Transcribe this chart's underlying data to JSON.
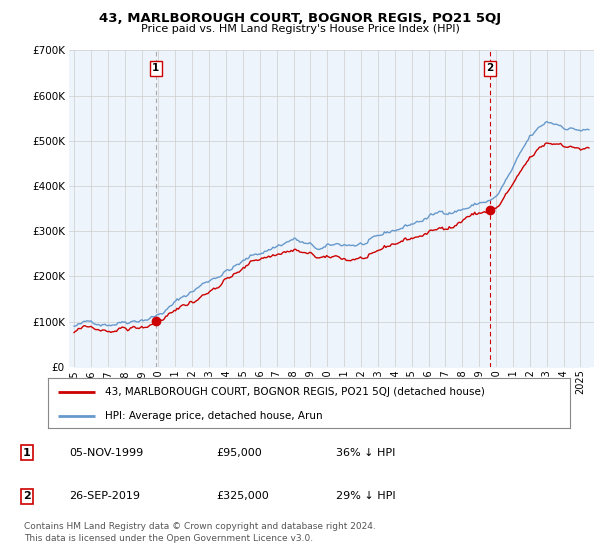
{
  "title": "43, MARLBOROUGH COURT, BOGNOR REGIS, PO21 5QJ",
  "subtitle": "Price paid vs. HM Land Registry's House Price Index (HPI)",
  "ylim": [
    0,
    700000
  ],
  "yticks": [
    0,
    100000,
    200000,
    300000,
    400000,
    500000,
    600000,
    700000
  ],
  "hpi_color": "#6699cc",
  "hpi_fill_color": "#ddeeff",
  "price_color": "#cc0000",
  "vline1_color": "#aaaaaa",
  "vline2_color": "#cc0000",
  "purchase1_date": 2000.0,
  "purchase1_price": 95000,
  "purchase1_label": "1",
  "purchase2_date": 2020.0,
  "purchase2_price": 325000,
  "purchase2_label": "2",
  "legend_line1": "43, MARLBOROUGH COURT, BOGNOR REGIS, PO21 5QJ (detached house)",
  "legend_line2": "HPI: Average price, detached house, Arun",
  "table_row1": [
    "1",
    "05-NOV-1999",
    "£95,000",
    "36% ↓ HPI"
  ],
  "table_row2": [
    "2",
    "26-SEP-2019",
    "£325,000",
    "29% ↓ HPI"
  ],
  "footer": "Contains HM Land Registry data © Crown copyright and database right 2024.\nThis data is licensed under the Open Government Licence v3.0.",
  "background_color": "#ffffff",
  "chart_bg_color": "#eef4fb",
  "grid_color": "#cccccc"
}
